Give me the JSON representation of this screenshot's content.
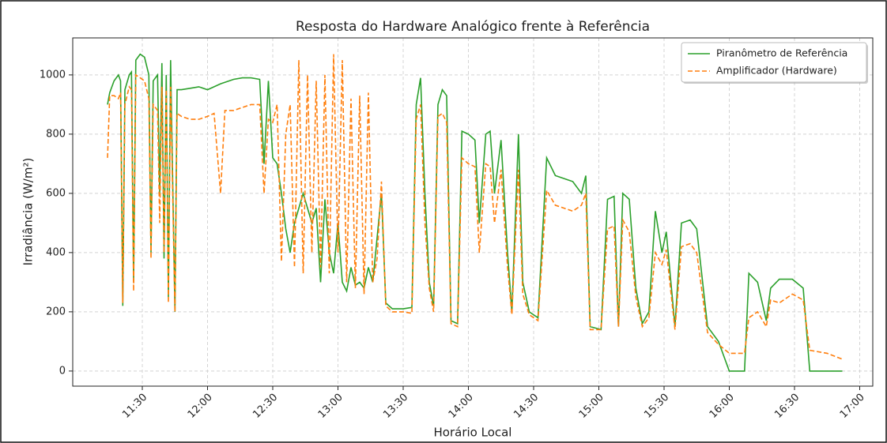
{
  "chart_data": {
    "type": "line",
    "title": "Resposta do Hardware Analógico frente à Referência",
    "xlabel": "Horário Local",
    "ylabel": "Irradiância (W/m²)",
    "x": [
      "11:14",
      "11:15",
      "11:17",
      "11:19",
      "11:20",
      "11:21",
      "11:22",
      "11:24",
      "11:25",
      "11:26",
      "11:27",
      "11:29",
      "11:31",
      "11:33",
      "11:34",
      "11:35",
      "11:37",
      "11:38",
      "11:39",
      "11:40",
      "11:41",
      "11:42",
      "11:43",
      "11:45",
      "11:46",
      "11:48",
      "11:52",
      "11:56",
      "12:00",
      "12:03",
      "12:06",
      "12:08",
      "12:12",
      "12:16",
      "12:20",
      "12:24",
      "12:26",
      "12:28",
      "12:30",
      "12:32",
      "12:34",
      "12:36",
      "12:38",
      "12:40",
      "12:42",
      "12:44",
      "12:46",
      "12:48",
      "12:50",
      "12:52",
      "12:54",
      "12:56",
      "12:58",
      "13:00",
      "13:02",
      "13:04",
      "13:06",
      "13:08",
      "13:10",
      "13:12",
      "13:14",
      "13:16",
      "13:18",
      "13:20",
      "13:22",
      "13:25",
      "13:30",
      "13:34",
      "13:36",
      "13:38",
      "13:40",
      "13:42",
      "13:44",
      "13:46",
      "13:48",
      "13:50",
      "13:52",
      "13:55",
      "13:57",
      "14:00",
      "14:03",
      "14:05",
      "14:08",
      "14:10",
      "14:12",
      "14:15",
      "14:18",
      "14:20",
      "14:23",
      "14:25",
      "14:28",
      "14:32",
      "14:36",
      "14:40",
      "14:44",
      "14:48",
      "14:52",
      "14:54",
      "14:56",
      "15:01",
      "15:04",
      "15:07",
      "15:09",
      "15:11",
      "15:14",
      "15:17",
      "15:20",
      "15:23",
      "15:26",
      "15:29",
      "15:31",
      "15:35",
      "15:38",
      "15:42",
      "15:45",
      "15:50",
      "15:55",
      "16:00",
      "16:07",
      "16:09",
      "16:13",
      "16:17",
      "16:19",
      "16:23",
      "16:29",
      "16:34",
      "16:37",
      "16:45",
      "16:52"
    ],
    "series": [
      {
        "name": "Piranômetro de Referência",
        "color": "#2ca02c",
        "dash": false,
        "values": [
          900,
          940,
          980,
          1000,
          980,
          220,
          950,
          1000,
          1010,
          300,
          1050,
          1070,
          1060,
          1000,
          400,
          980,
          1000,
          600,
          1040,
          380,
          1000,
          250,
          1050,
          200,
          950,
          950,
          955,
          960,
          950,
          960,
          970,
          975,
          985,
          990,
          990,
          985,
          700,
          980,
          720,
          700,
          600,
          480,
          400,
          500,
          550,
          600,
          550,
          500,
          550,
          300,
          580,
          400,
          330,
          500,
          300,
          270,
          350,
          290,
          300,
          280,
          350,
          300,
          450,
          600,
          230,
          210,
          210,
          215,
          900,
          990,
          600,
          300,
          220,
          900,
          950,
          930,
          170,
          160,
          810,
          800,
          780,
          500,
          800,
          810,
          600,
          780,
          400,
          200,
          800,
          300,
          200,
          180,
          720,
          660,
          650,
          640,
          600,
          660,
          150,
          140,
          580,
          590,
          150,
          600,
          580,
          280,
          160,
          200,
          540,
          400,
          470,
          150,
          500,
          510,
          480,
          150,
          100,
          0,
          0,
          330,
          300,
          170,
          280,
          310,
          310,
          280,
          0,
          0,
          0
        ]
      },
      {
        "name": "Amplificador (Hardware)",
        "color": "#ff7f0e",
        "dash": true,
        "values": [
          720,
          930,
          930,
          920,
          940,
          230,
          900,
          960,
          950,
          270,
          1000,
          990,
          980,
          920,
          380,
          900,
          880,
          500,
          960,
          400,
          950,
          230,
          960,
          200,
          870,
          860,
          850,
          850,
          860,
          870,
          600,
          880,
          880,
          890,
          900,
          900,
          600,
          850,
          840,
          900,
          370,
          800,
          900,
          350,
          1050,
          330,
          1000,
          400,
          980,
          350,
          1000,
          330,
          1070,
          400,
          1050,
          300,
          920,
          280,
          930,
          260,
          940,
          300,
          380,
          640,
          220,
          200,
          200,
          195,
          850,
          900,
          500,
          280,
          200,
          860,
          870,
          840,
          160,
          150,
          720,
          700,
          690,
          400,
          700,
          690,
          500,
          680,
          350,
          190,
          680,
          260,
          190,
          170,
          610,
          560,
          550,
          540,
          560,
          600,
          140,
          140,
          480,
          490,
          150,
          510,
          470,
          250,
          150,
          180,
          400,
          360,
          410,
          140,
          420,
          430,
          400,
          130,
          90,
          60,
          60,
          180,
          200,
          150,
          240,
          230,
          260,
          240,
          70,
          60,
          40
        ]
      }
    ],
    "xlim": [
      "10:58",
      "17:06"
    ],
    "xticks": [
      "11:30",
      "12:00",
      "12:30",
      "13:00",
      "13:30",
      "14:00",
      "14:30",
      "15:00",
      "15:30",
      "16:00",
      "16:30",
      "17:00"
    ],
    "ylim": [
      -51,
      1125
    ],
    "yticks": [
      0,
      200,
      400,
      600,
      800,
      1000
    ],
    "grid": true,
    "legend": "upper right"
  }
}
